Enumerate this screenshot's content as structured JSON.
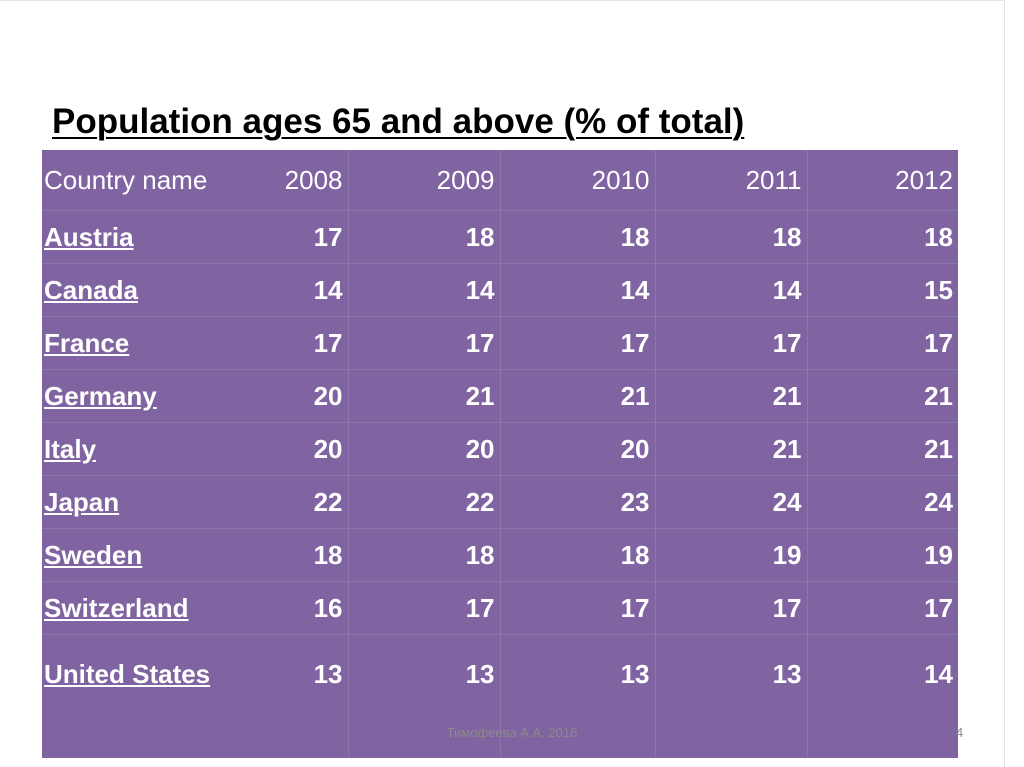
{
  "header": {
    "title": "Population ages 65 and above (% of total)"
  },
  "table": {
    "columns": [
      "Country name",
      "2008",
      "2009",
      "2010",
      "2011",
      "2012"
    ],
    "rows": [
      [
        "Austria",
        17,
        18,
        18,
        18,
        18
      ],
      [
        "Canada",
        14,
        14,
        14,
        14,
        15
      ],
      [
        "France",
        17,
        17,
        17,
        17,
        17
      ],
      [
        "Germany",
        20,
        21,
        21,
        21,
        21
      ],
      [
        "Italy",
        20,
        20,
        20,
        21,
        21
      ],
      [
        "Japan",
        22,
        22,
        23,
        24,
        24
      ],
      [
        "Sweden",
        18,
        18,
        18,
        19,
        19
      ],
      [
        "Switzerland",
        16,
        17,
        17,
        17,
        17
      ],
      [
        "United States",
        13,
        13,
        13,
        13,
        14
      ]
    ]
  },
  "footer": {
    "author": "Тимофеева А.А. 2016",
    "page": "4"
  }
}
